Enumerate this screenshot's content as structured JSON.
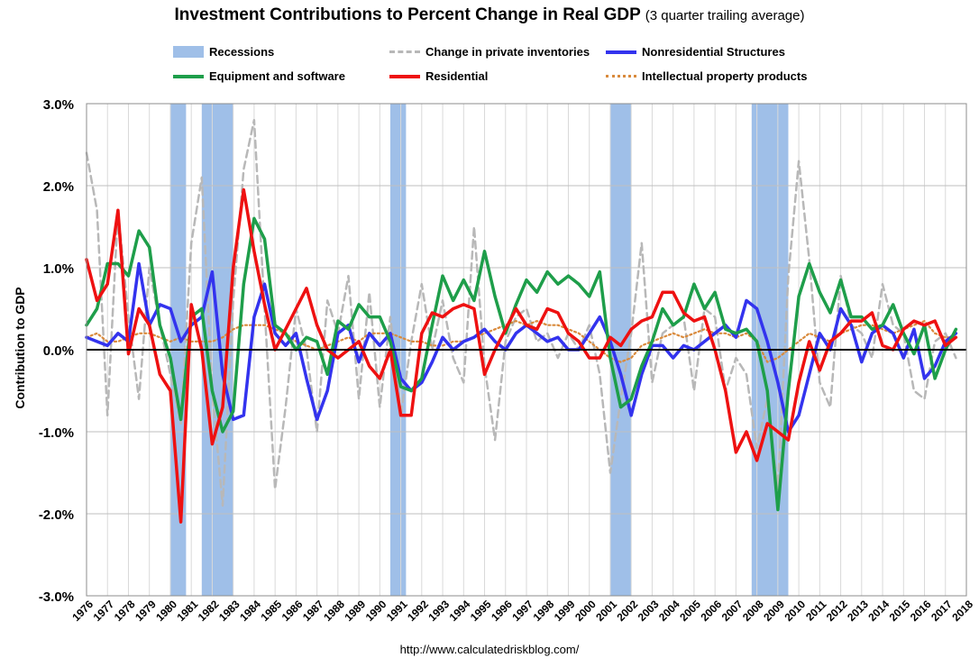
{
  "title": "Investment Contributions to Percent Change in Real GDP",
  "subtitle": "(3 quarter trailing average)",
  "ylabel": "Contribution to GDP",
  "source": "http://www.calculatedriskblog.com/",
  "legend": {
    "recessions": "Recessions",
    "inventories": "Change in private inventories",
    "nonres": "Nonresidential Structures",
    "equipment": "Equipment and software",
    "residential": "Residential",
    "ip": "Intellectual property products"
  },
  "colors": {
    "recession": "#9fbfe8",
    "inventories": "#b8b8b8",
    "nonres": "#3333ee",
    "equipment": "#1e9e4a",
    "residential": "#ee1111",
    "ip": "#d98a3c"
  },
  "chart_data": {
    "type": "line",
    "title": "Investment Contributions to Percent Change in Real GDP (3 quarter trailing average)",
    "ylabel": "Contribution to GDP",
    "ylim": [
      -3,
      3
    ],
    "xlim": [
      1976,
      2018
    ],
    "yticks": [
      -3,
      -2,
      -1,
      0,
      1,
      2,
      3
    ],
    "ytick_labels": [
      "-3.0%",
      "-2.0%",
      "-1.0%",
      "0.0%",
      "1.0%",
      "2.0%",
      "3.0%"
    ],
    "xtick_labels": [
      "1976",
      "1977",
      "1978",
      "1979",
      "1980",
      "1981",
      "1982",
      "1983",
      "1984",
      "1985",
      "1986",
      "1987",
      "1988",
      "1989",
      "1990",
      "1991",
      "1992",
      "1993",
      "1994",
      "1995",
      "1996",
      "1997",
      "1998",
      "1999",
      "2000",
      "2001",
      "2002",
      "2003",
      "2004",
      "2005",
      "2006",
      "2007",
      "2008",
      "2009",
      "2010",
      "2011",
      "2012",
      "2013",
      "2014",
      "2015",
      "2016",
      "2017",
      "2018"
    ],
    "grid": "vertical and horizontal",
    "legend_position": "top",
    "recessions": [
      [
        1980.0,
        1980.75
      ],
      [
        1981.5,
        1983.0
      ],
      [
        1990.5,
        1991.25
      ],
      [
        2001.0,
        2002.0
      ],
      [
        2007.75,
        2009.5
      ]
    ],
    "series": [
      {
        "name": "Change in private inventories",
        "style": "dashed",
        "x": [
          1976.0,
          1976.5,
          1977.0,
          1977.5,
          1978.0,
          1978.5,
          1979.0,
          1979.5,
          1980.0,
          1980.5,
          1981.0,
          1981.5,
          1982.0,
          1982.5,
          1983.0,
          1983.5,
          1984.0,
          1984.5,
          1985.0,
          1985.5,
          1986.0,
          1986.5,
          1987.0,
          1987.5,
          1988.0,
          1988.5,
          1989.0,
          1989.5,
          1990.0,
          1990.5,
          1991.0,
          1991.5,
          1992.0,
          1992.5,
          1993.0,
          1993.5,
          1994.0,
          1994.5,
          1995.0,
          1995.5,
          1996.0,
          1996.5,
          1997.0,
          1997.5,
          1998.0,
          1998.5,
          1999.0,
          1999.5,
          2000.0,
          2000.5,
          2001.0,
          2001.5,
          2002.0,
          2002.5,
          2003.0,
          2003.5,
          2004.0,
          2004.5,
          2005.0,
          2005.5,
          2006.0,
          2006.5,
          2007.0,
          2007.5,
          2008.0,
          2008.5,
          2009.0,
          2009.5,
          2010.0,
          2010.5,
          2011.0,
          2011.5,
          2012.0,
          2012.5,
          2013.0,
          2013.5,
          2014.0,
          2014.5,
          2015.0,
          2015.5,
          2016.0,
          2016.5,
          2017.0,
          2017.5
        ],
        "values": [
          2.4,
          1.7,
          -0.8,
          1.7,
          0.4,
          -0.6,
          1.0,
          0.3,
          -0.3,
          -0.9,
          1.3,
          2.1,
          -0.5,
          -1.9,
          0.6,
          2.2,
          2.8,
          0.5,
          -1.7,
          -0.7,
          0.5,
          0.0,
          -1.0,
          0.6,
          0.2,
          0.9,
          -0.6,
          0.7,
          -0.7,
          0.4,
          -0.8,
          0.1,
          0.8,
          0.0,
          0.6,
          -0.1,
          -0.4,
          1.5,
          -0.2,
          -1.1,
          0.1,
          0.4,
          0.5,
          0.1,
          0.2,
          -0.1,
          0.2,
          0.0,
          0.3,
          -0.3,
          -1.5,
          -0.6,
          0.2,
          1.3,
          -0.4,
          0.2,
          0.3,
          0.4,
          -0.5,
          0.5,
          0.4,
          -0.5,
          -0.1,
          -0.3,
          -1.2,
          -0.6,
          -1.7,
          0.9,
          2.3,
          1.1,
          -0.4,
          -0.7,
          0.9,
          0.3,
          0.2,
          -0.1,
          0.8,
          0.3,
          0.2,
          -0.5,
          -0.6,
          0.1,
          0.2,
          -0.1
        ]
      },
      {
        "name": "Nonresidential Structures",
        "style": "solid",
        "x": [
          1976.0,
          1976.5,
          1977.0,
          1977.5,
          1978.0,
          1978.5,
          1979.0,
          1979.5,
          1980.0,
          1980.5,
          1981.0,
          1981.5,
          1982.0,
          1982.5,
          1983.0,
          1983.5,
          1984.0,
          1984.5,
          1985.0,
          1985.5,
          1986.0,
          1986.5,
          1987.0,
          1987.5,
          1988.0,
          1988.5,
          1989.0,
          1989.5,
          1990.0,
          1990.5,
          1991.0,
          1991.5,
          1992.0,
          1992.5,
          1993.0,
          1993.5,
          1994.0,
          1994.5,
          1995.0,
          1995.5,
          1996.0,
          1996.5,
          1997.0,
          1997.5,
          1998.0,
          1998.5,
          1999.0,
          1999.5,
          2000.0,
          2000.5,
          2001.0,
          2001.5,
          2002.0,
          2002.5,
          2003.0,
          2003.5,
          2004.0,
          2004.5,
          2005.0,
          2005.5,
          2006.0,
          2006.5,
          2007.0,
          2007.5,
          2008.0,
          2008.5,
          2009.0,
          2009.5,
          2010.0,
          2010.5,
          2011.0,
          2011.5,
          2012.0,
          2012.5,
          2013.0,
          2013.5,
          2014.0,
          2014.5,
          2015.0,
          2015.5,
          2016.0,
          2016.5,
          2017.0,
          2017.5
        ],
        "values": [
          0.15,
          0.1,
          0.05,
          0.2,
          0.1,
          1.05,
          0.3,
          0.55,
          0.5,
          0.1,
          0.3,
          0.4,
          0.95,
          -0.3,
          -0.85,
          -0.8,
          0.4,
          0.8,
          0.2,
          0.05,
          0.2,
          -0.35,
          -0.85,
          -0.5,
          0.2,
          0.3,
          -0.15,
          0.2,
          0.05,
          0.2,
          -0.35,
          -0.5,
          -0.4,
          -0.15,
          0.15,
          0.0,
          0.1,
          0.15,
          0.25,
          0.1,
          0.0,
          0.2,
          0.3,
          0.2,
          0.1,
          0.15,
          0.0,
          0.0,
          0.2,
          0.4,
          0.1,
          -0.3,
          -0.8,
          -0.3,
          0.05,
          0.05,
          -0.1,
          0.05,
          0.0,
          0.1,
          0.2,
          0.3,
          0.15,
          0.6,
          0.5,
          0.1,
          -0.4,
          -1.0,
          -0.8,
          -0.3,
          0.2,
          0.0,
          0.5,
          0.3,
          -0.15,
          0.2,
          0.3,
          0.2,
          -0.1,
          0.25,
          -0.35,
          -0.2,
          0.1,
          0.2
        ]
      },
      {
        "name": "Equipment and software",
        "style": "solid",
        "x": [
          1976.0,
          1976.5,
          1977.0,
          1977.5,
          1978.0,
          1978.5,
          1979.0,
          1979.5,
          1980.0,
          1980.5,
          1981.0,
          1981.5,
          1982.0,
          1982.5,
          1983.0,
          1983.5,
          1984.0,
          1984.5,
          1985.0,
          1985.5,
          1986.0,
          1986.5,
          1987.0,
          1987.5,
          1988.0,
          1988.5,
          1989.0,
          1989.5,
          1990.0,
          1990.5,
          1991.0,
          1991.5,
          1992.0,
          1992.5,
          1993.0,
          1993.5,
          1994.0,
          1994.5,
          1995.0,
          1995.5,
          1996.0,
          1996.5,
          1997.0,
          1997.5,
          1998.0,
          1998.5,
          1999.0,
          1999.5,
          2000.0,
          2000.5,
          2001.0,
          2001.5,
          2002.0,
          2002.5,
          2003.0,
          2003.5,
          2004.0,
          2004.5,
          2005.0,
          2005.5,
          2006.0,
          2006.5,
          2007.0,
          2007.5,
          2008.0,
          2008.5,
          2009.0,
          2009.5,
          2010.0,
          2010.5,
          2011.0,
          2011.5,
          2012.0,
          2012.5,
          2013.0,
          2013.5,
          2014.0,
          2014.5,
          2015.0,
          2015.5,
          2016.0,
          2016.5,
          2017.0,
          2017.5
        ],
        "values": [
          0.3,
          0.5,
          1.05,
          1.05,
          0.9,
          1.45,
          1.25,
          0.3,
          -0.1,
          -0.85,
          0.4,
          0.5,
          -0.5,
          -1.0,
          -0.75,
          0.8,
          1.6,
          1.35,
          0.3,
          0.2,
          0.0,
          0.15,
          0.1,
          -0.3,
          0.35,
          0.25,
          0.55,
          0.4,
          0.4,
          0.1,
          -0.45,
          -0.5,
          -0.35,
          0.3,
          0.9,
          0.6,
          0.85,
          0.6,
          1.2,
          0.65,
          0.2,
          0.55,
          0.85,
          0.7,
          0.95,
          0.8,
          0.9,
          0.8,
          0.65,
          0.95,
          -0.1,
          -0.7,
          -0.6,
          -0.2,
          0.1,
          0.5,
          0.3,
          0.4,
          0.8,
          0.5,
          0.7,
          0.25,
          0.2,
          0.25,
          0.1,
          -0.5,
          -1.95,
          -0.5,
          0.65,
          1.05,
          0.7,
          0.45,
          0.85,
          0.4,
          0.4,
          0.25,
          0.3,
          0.55,
          0.2,
          -0.05,
          0.3,
          -0.35,
          0.0,
          0.25
        ]
      },
      {
        "name": "Residential",
        "style": "solid",
        "x": [
          1976.0,
          1976.5,
          1977.0,
          1977.5,
          1978.0,
          1978.5,
          1979.0,
          1979.5,
          1980.0,
          1980.5,
          1981.0,
          1981.5,
          1982.0,
          1982.5,
          1983.0,
          1983.5,
          1984.0,
          1984.5,
          1985.0,
          1985.5,
          1986.0,
          1986.5,
          1987.0,
          1987.5,
          1988.0,
          1988.5,
          1989.0,
          1989.5,
          1990.0,
          1990.5,
          1991.0,
          1991.5,
          1992.0,
          1992.5,
          1993.0,
          1993.5,
          1994.0,
          1994.5,
          1995.0,
          1995.5,
          1996.0,
          1996.5,
          1997.0,
          1997.5,
          1998.0,
          1998.5,
          1999.0,
          1999.5,
          2000.0,
          2000.5,
          2001.0,
          2001.5,
          2002.0,
          2002.5,
          2003.0,
          2003.5,
          2004.0,
          2004.5,
          2005.0,
          2005.5,
          2006.0,
          2006.5,
          2007.0,
          2007.5,
          2008.0,
          2008.5,
          2009.0,
          2009.5,
          2010.0,
          2010.5,
          2011.0,
          2011.5,
          2012.0,
          2012.5,
          2013.0,
          2013.5,
          2014.0,
          2014.5,
          2015.0,
          2015.5,
          2016.0,
          2016.5,
          2017.0,
          2017.5
        ],
        "values": [
          1.1,
          0.6,
          0.8,
          1.7,
          -0.05,
          0.5,
          0.3,
          -0.3,
          -0.5,
          -2.1,
          0.55,
          0.0,
          -1.15,
          -0.7,
          1.0,
          1.95,
          1.2,
          0.55,
          0.0,
          0.25,
          0.5,
          0.75,
          0.3,
          0.0,
          -0.1,
          0.0,
          0.1,
          -0.2,
          -0.35,
          0.0,
          -0.8,
          -0.8,
          0.2,
          0.45,
          0.4,
          0.5,
          0.55,
          0.5,
          -0.3,
          0.0,
          0.25,
          0.5,
          0.3,
          0.25,
          0.5,
          0.45,
          0.2,
          0.1,
          -0.1,
          -0.1,
          0.15,
          0.05,
          0.25,
          0.35,
          0.4,
          0.7,
          0.7,
          0.45,
          0.35,
          0.4,
          0.0,
          -0.5,
          -1.25,
          -1.0,
          -1.35,
          -0.9,
          -1.0,
          -1.1,
          -0.4,
          0.1,
          -0.25,
          0.1,
          0.2,
          0.35,
          0.35,
          0.45,
          0.05,
          0.0,
          0.25,
          0.35,
          0.3,
          0.35,
          0.05,
          0.15
        ]
      },
      {
        "name": "Intellectual property products",
        "style": "dotted",
        "x": [
          1976.0,
          1976.5,
          1977.0,
          1977.5,
          1978.0,
          1978.5,
          1979.0,
          1979.5,
          1980.0,
          1980.5,
          1981.0,
          1981.5,
          1982.0,
          1982.5,
          1983.0,
          1983.5,
          1984.0,
          1984.5,
          1985.0,
          1985.5,
          1986.0,
          1986.5,
          1987.0,
          1987.5,
          1988.0,
          1988.5,
          1989.0,
          1989.5,
          1990.0,
          1990.5,
          1991.0,
          1991.5,
          1992.0,
          1992.5,
          1993.0,
          1993.5,
          1994.0,
          1994.5,
          1995.0,
          1995.5,
          1996.0,
          1996.5,
          1997.0,
          1997.5,
          1998.0,
          1998.5,
          1999.0,
          1999.5,
          2000.0,
          2000.5,
          2001.0,
          2001.5,
          2002.0,
          2002.5,
          2003.0,
          2003.5,
          2004.0,
          2004.5,
          2005.0,
          2005.5,
          2006.0,
          2006.5,
          2007.0,
          2007.5,
          2008.0,
          2008.5,
          2009.0,
          2009.5,
          2010.0,
          2010.5,
          2011.0,
          2011.5,
          2012.0,
          2012.5,
          2013.0,
          2013.5,
          2014.0,
          2014.5,
          2015.0,
          2015.5,
          2016.0,
          2016.5,
          2017.0,
          2017.5
        ],
        "values": [
          0.15,
          0.2,
          0.1,
          0.1,
          0.15,
          0.2,
          0.2,
          0.15,
          0.1,
          0.15,
          0.1,
          0.1,
          0.1,
          0.15,
          0.25,
          0.3,
          0.3,
          0.3,
          0.25,
          0.2,
          0.1,
          0.05,
          0.0,
          0.05,
          0.1,
          0.15,
          0.1,
          0.2,
          0.2,
          0.2,
          0.15,
          0.1,
          0.1,
          0.05,
          0.05,
          0.1,
          0.1,
          0.15,
          0.2,
          0.25,
          0.3,
          0.35,
          0.3,
          0.35,
          0.3,
          0.3,
          0.25,
          0.2,
          0.1,
          0.0,
          -0.1,
          -0.15,
          -0.1,
          0.05,
          0.1,
          0.15,
          0.2,
          0.15,
          0.2,
          0.25,
          0.2,
          0.2,
          0.15,
          0.2,
          0.1,
          -0.15,
          -0.1,
          0.0,
          0.1,
          0.2,
          0.15,
          0.1,
          0.2,
          0.25,
          0.3,
          0.3,
          0.25,
          0.2,
          0.25,
          0.3,
          0.35,
          0.2,
          0.15,
          0.15
        ]
      }
    ]
  }
}
